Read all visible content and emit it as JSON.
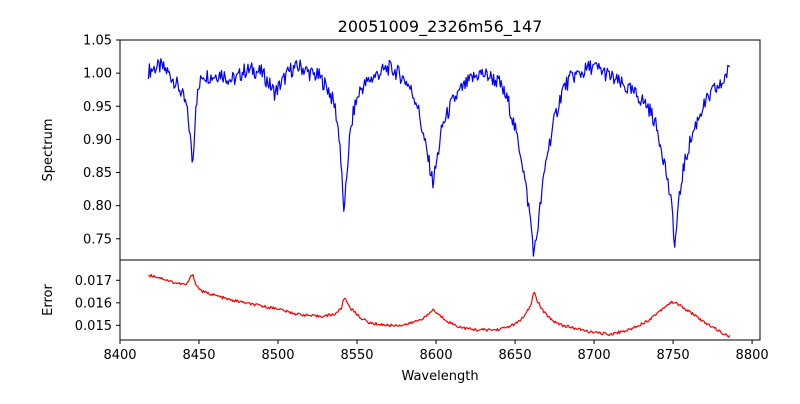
{
  "chart_data": {
    "type": "line",
    "title": "20051009_2326m56_147",
    "xlabel": "Wavelength",
    "xlim": [
      8400,
      8805
    ],
    "xticks": [
      8400,
      8450,
      8500,
      8550,
      8600,
      8650,
      8700,
      8750,
      8800
    ],
    "grid": false,
    "legend": "none",
    "panels": [
      {
        "name": "spectrum",
        "ylabel": "Spectrum",
        "ylim": [
          0.718,
          1.05
        ],
        "yticks": [
          0.75,
          0.8,
          0.85,
          0.9,
          0.95,
          1.0,
          1.05
        ],
        "tick_labels": [
          "0.75",
          "0.80",
          "0.85",
          "0.90",
          "0.95",
          "1.00",
          "1.05"
        ],
        "color": "#0000ff",
        "x": [
          8418,
          8422,
          8426,
          8430,
          8434,
          8438,
          8442,
          8444,
          8446,
          8448,
          8452,
          8458,
          8464,
          8470,
          8474,
          8478,
          8484,
          8490,
          8494,
          8498,
          8502,
          8508,
          8514,
          8520,
          8526,
          8532,
          8536,
          8539,
          8541,
          8542,
          8543,
          8545,
          8548,
          8552,
          8558,
          8564,
          8570,
          8576,
          8582,
          8588,
          8592,
          8596,
          8598,
          8600,
          8604,
          8610,
          8616,
          8622,
          8628,
          8634,
          8640,
          8646,
          8650,
          8654,
          8657,
          8660,
          8662,
          8664,
          8667,
          8670,
          8675,
          8680,
          8686,
          8692,
          8698,
          8704,
          8710,
          8716,
          8722,
          8728,
          8734,
          8738,
          8742,
          8745,
          8748,
          8750,
          8751,
          8753,
          8756,
          8760,
          8764,
          8768,
          8772,
          8776,
          8780,
          8784,
          8786
        ],
        "values": [
          1.003,
          1.008,
          1.01,
          1.002,
          0.99,
          0.975,
          0.95,
          0.915,
          0.86,
          0.955,
          0.998,
          0.995,
          1.0,
          0.99,
          0.992,
          1.003,
          1.005,
          1.0,
          0.985,
          0.97,
          0.985,
          1.005,
          1.01,
          1.0,
          0.995,
          0.975,
          0.95,
          0.9,
          0.815,
          0.785,
          0.83,
          0.895,
          0.945,
          0.975,
          0.99,
          1.0,
          1.008,
          1.0,
          0.985,
          0.955,
          0.905,
          0.86,
          0.835,
          0.86,
          0.92,
          0.955,
          0.975,
          0.99,
          1.0,
          0.995,
          0.985,
          0.955,
          0.915,
          0.875,
          0.825,
          0.775,
          0.725,
          0.76,
          0.82,
          0.875,
          0.93,
          0.975,
          0.995,
          1.0,
          1.01,
          1.005,
          0.995,
          0.985,
          0.975,
          0.965,
          0.95,
          0.93,
          0.895,
          0.86,
          0.815,
          0.78,
          0.735,
          0.79,
          0.85,
          0.89,
          0.92,
          0.945,
          0.96,
          0.975,
          0.98,
          1.0,
          1.005
        ]
      },
      {
        "name": "error",
        "ylabel": "Error",
        "ylim": [
          0.01435,
          0.0179
        ],
        "yticks": [
          0.015,
          0.016,
          0.017
        ],
        "tick_labels": [
          "0.015",
          "0.016",
          "0.017"
        ],
        "color": "#ff0000",
        "x": [
          8418,
          8422,
          8426,
          8430,
          8434,
          8438,
          8442,
          8444,
          8446,
          8448,
          8452,
          8458,
          8464,
          8470,
          8476,
          8482,
          8488,
          8494,
          8500,
          8506,
          8512,
          8518,
          8524,
          8530,
          8536,
          8540,
          8542,
          8546,
          8552,
          8558,
          8564,
          8570,
          8576,
          8582,
          8588,
          8594,
          8598,
          8602,
          8608,
          8614,
          8620,
          8626,
          8632,
          8638,
          8644,
          8650,
          8656,
          8660,
          8662,
          8664,
          8668,
          8674,
          8680,
          8686,
          8692,
          8698,
          8704,
          8710,
          8716,
          8722,
          8728,
          8734,
          8740,
          8746,
          8750,
          8754,
          8758,
          8764,
          8770,
          8776,
          8780,
          8784,
          8786
        ],
        "values": [
          0.01722,
          0.01718,
          0.0171,
          0.017,
          0.0169,
          0.01685,
          0.0168,
          0.01705,
          0.0173,
          0.0168,
          0.0165,
          0.01638,
          0.01625,
          0.01612,
          0.01605,
          0.01595,
          0.01588,
          0.0158,
          0.01575,
          0.0156,
          0.0155,
          0.01545,
          0.0154,
          0.01542,
          0.0155,
          0.01575,
          0.01625,
          0.01575,
          0.01535,
          0.0151,
          0.01505,
          0.015,
          0.015,
          0.01505,
          0.0152,
          0.0154,
          0.0157,
          0.01545,
          0.01515,
          0.01495,
          0.01485,
          0.0148,
          0.0148,
          0.0148,
          0.0149,
          0.01505,
          0.0154,
          0.0159,
          0.0165,
          0.0161,
          0.0156,
          0.0152,
          0.015,
          0.0149,
          0.0148,
          0.0147,
          0.01465,
          0.0146,
          0.0147,
          0.0148,
          0.015,
          0.0152,
          0.01555,
          0.0159,
          0.01605,
          0.0159,
          0.0157,
          0.01545,
          0.0151,
          0.0149,
          0.0147,
          0.01455,
          0.0145
        ]
      }
    ]
  }
}
